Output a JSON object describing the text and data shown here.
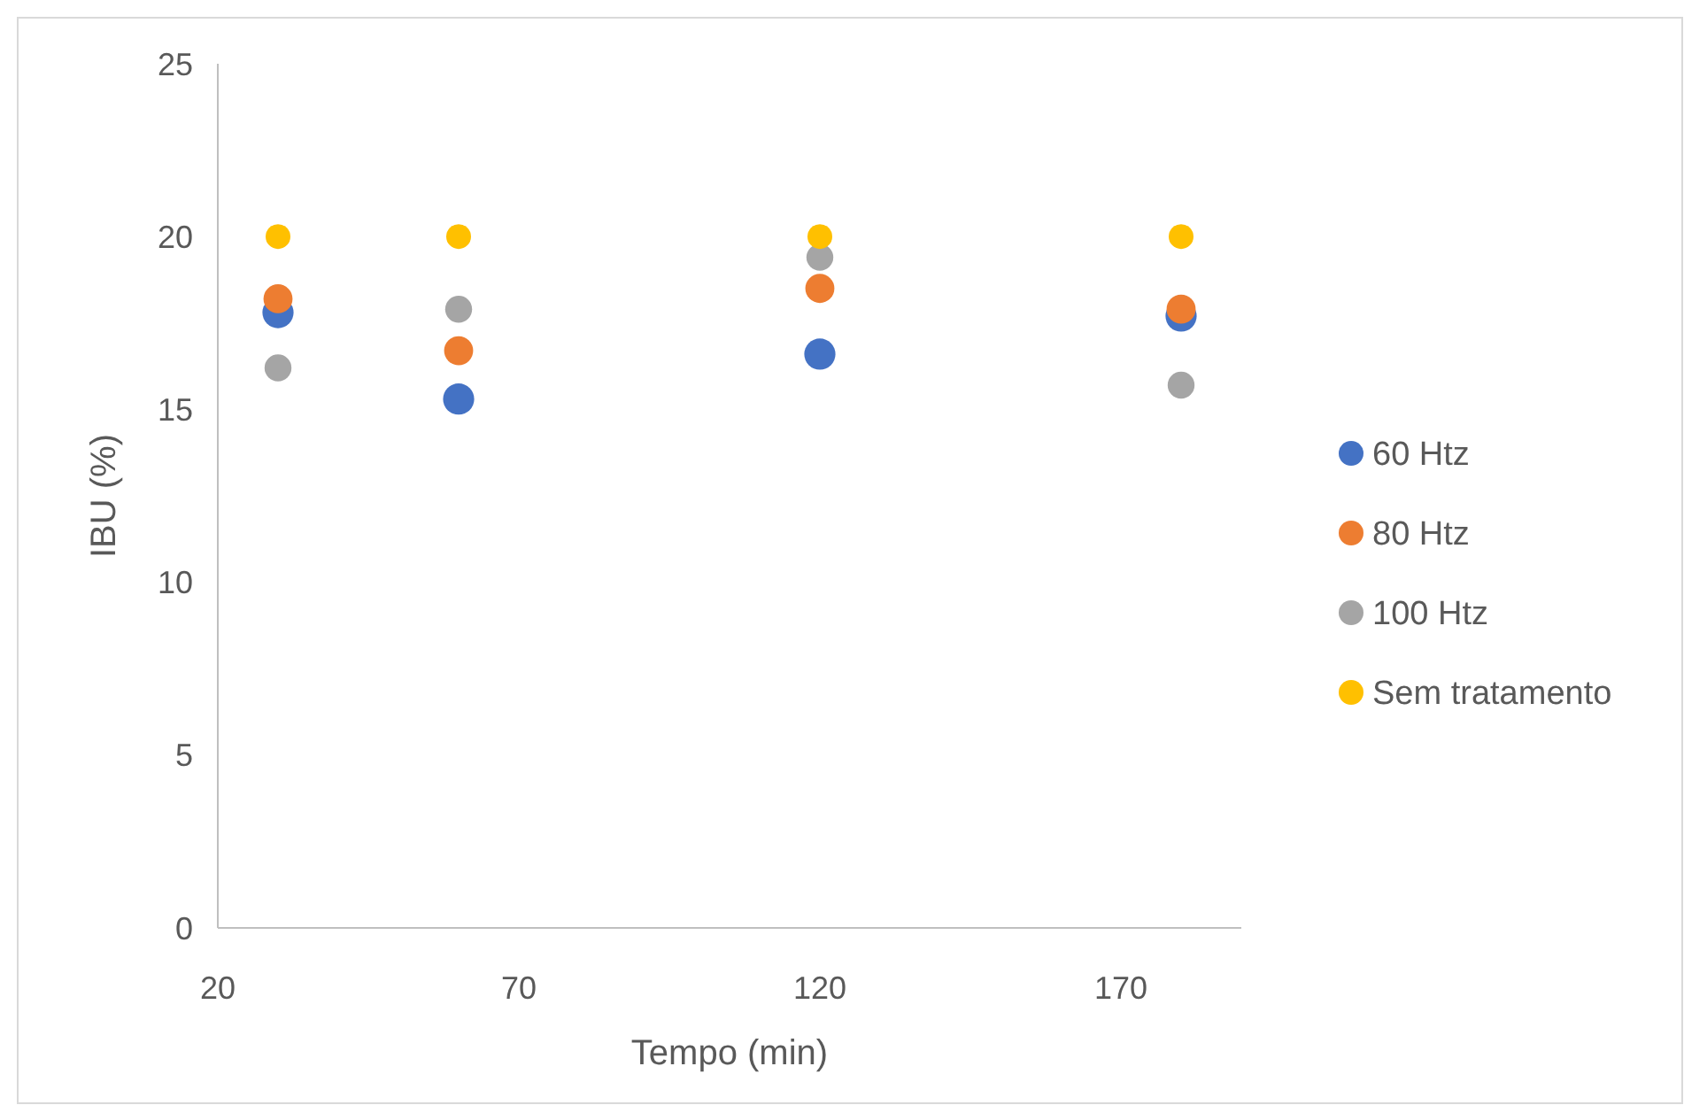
{
  "chart_data": {
    "type": "scatter",
    "xlabel": "Tempo (min)",
    "ylabel": "IBU (%)",
    "x": [
      30,
      60,
      120,
      180
    ],
    "series": [
      {
        "name": "60 Htz",
        "color": "#4472c4",
        "values": [
          17.8,
          15.3,
          16.6,
          17.7
        ]
      },
      {
        "name": "80 Htz",
        "color": "#ed7d31",
        "values": [
          18.2,
          16.7,
          18.5,
          17.9
        ]
      },
      {
        "name": "100 Htz",
        "color": "#a5a5a5",
        "values": [
          16.2,
          17.9,
          19.4,
          15.7
        ]
      },
      {
        "name": "Sem tratamento",
        "color": "#ffc000",
        "values": [
          20,
          20,
          20,
          20
        ]
      }
    ],
    "xlim": [
      20,
      190
    ],
    "xticks": [
      20,
      70,
      120,
      170
    ],
    "ylim": [
      0,
      25
    ],
    "yticks": [
      0,
      5,
      10,
      15,
      20,
      25
    ],
    "grid": false,
    "legend": "right",
    "marker": "circle"
  }
}
